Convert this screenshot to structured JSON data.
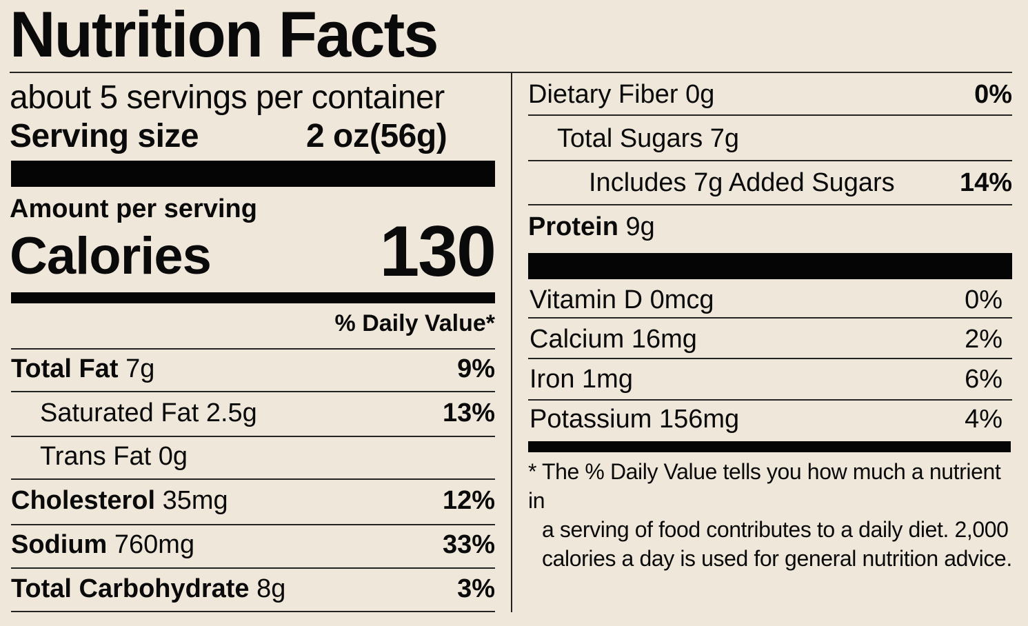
{
  "title": "Nutrition Facts",
  "servings_per_container": "about 5 servings per container",
  "serving_size": {
    "label": "Serving size",
    "amount": "2 oz",
    "grams": "(56g)"
  },
  "amount_per_serving": "Amount per serving",
  "calories": {
    "label": "Calories",
    "value": "130"
  },
  "daily_value_header": "% Daily Value*",
  "left_nutrients": [
    {
      "name": "Total Fat",
      "amount": "7g",
      "dv": "9%"
    },
    {
      "name": "Saturated Fat",
      "amount": "2.5g",
      "dv": "13%"
    },
    {
      "name": "Trans Fat",
      "amount": "0g",
      "dv": ""
    },
    {
      "name": "Cholesterol",
      "amount": "35mg",
      "dv": "12%"
    },
    {
      "name": "Sodium",
      "amount": "760mg",
      "dv": "33%"
    },
    {
      "name": "Total Carbohydrate",
      "amount": "8g",
      "dv": "3%"
    }
  ],
  "right_nutrients": [
    {
      "name": "Dietary Fiber",
      "amount": "0g",
      "dv": "0%"
    },
    {
      "name": "Total Sugars",
      "amount": "7g",
      "dv": ""
    },
    {
      "name": "Includes 7g Added Sugars",
      "amount": "",
      "dv": "14%"
    },
    {
      "name": "Protein",
      "amount": "9g",
      "dv": ""
    }
  ],
  "vitamins": [
    {
      "name": "Vitamin D",
      "amount": "0mcg",
      "dv": "0%"
    },
    {
      "name": "Calcium",
      "amount": "16mg",
      "dv": "2%"
    },
    {
      "name": "Iron",
      "amount": "1mg",
      "dv": "6%"
    },
    {
      "name": "Potassium",
      "amount": "156mg",
      "dv": "4%"
    }
  ],
  "footnote": {
    "line1": "* The % Daily Value tells you how much a nutrient in",
    "line2": "a serving of food contributes to a daily diet. 2,000",
    "line3": "calories a day is used for general nutrition advice."
  }
}
